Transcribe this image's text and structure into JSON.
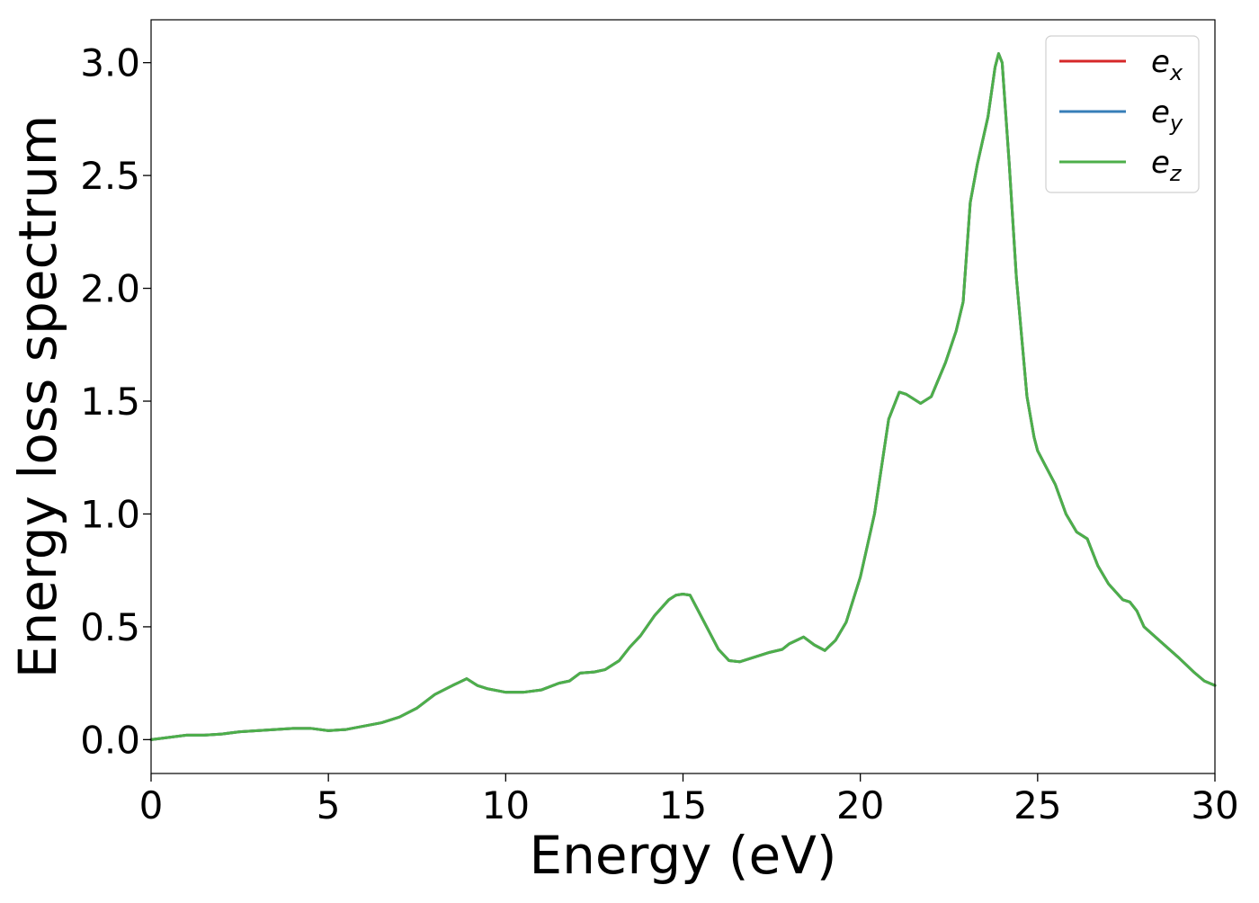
{
  "chart_data": {
    "type": "line",
    "title": "",
    "xlabel": "Energy (eV)",
    "ylabel": "Energy loss spectrum",
    "xlim": [
      0,
      30
    ],
    "ylim": [
      -0.15,
      3.19
    ],
    "xticks": [
      0,
      5,
      10,
      15,
      20,
      25,
      30
    ],
    "xtick_labels": [
      "0",
      "5",
      "10",
      "15",
      "20",
      "25",
      "30"
    ],
    "yticks": [
      0.0,
      0.5,
      1.0,
      1.5,
      2.0,
      2.5,
      3.0
    ],
    "ytick_labels": [
      "0.0",
      "0.5",
      "1.0",
      "1.5",
      "2.0",
      "2.5",
      "3.0"
    ],
    "grid": false,
    "legend_position": "top-right",
    "x": [
      0,
      0.5,
      1.0,
      1.5,
      2.0,
      2.5,
      3.0,
      3.5,
      4.0,
      4.5,
      5.0,
      5.5,
      6.0,
      6.5,
      7.0,
      7.5,
      8.0,
      8.5,
      8.9,
      9.2,
      9.5,
      10.0,
      10.5,
      11.0,
      11.5,
      11.8,
      12.1,
      12.5,
      12.8,
      13.2,
      13.5,
      13.8,
      14.2,
      14.6,
      14.8,
      15.0,
      15.2,
      15.5,
      16.0,
      16.3,
      16.6,
      17.0,
      17.4,
      17.8,
      18.0,
      18.4,
      18.7,
      19.0,
      19.3,
      19.6,
      20.0,
      20.4,
      20.8,
      21.1,
      21.3,
      21.7,
      22.0,
      22.4,
      22.7,
      22.9,
      23.1,
      23.3,
      23.6,
      23.8,
      23.9,
      24.0,
      24.2,
      24.4,
      24.7,
      24.9,
      25.0,
      25.2,
      25.5,
      25.8,
      26.1,
      26.4,
      26.7,
      27.0,
      27.4,
      27.6,
      27.8,
      28.0,
      28.5,
      29.0,
      29.4,
      29.7,
      30.0
    ],
    "series": [
      {
        "name": "e_x",
        "color": "#d62728",
        "y": [
          0.0,
          0.01,
          0.02,
          0.02,
          0.025,
          0.035,
          0.04,
          0.045,
          0.05,
          0.05,
          0.04,
          0.045,
          0.06,
          0.075,
          0.1,
          0.14,
          0.2,
          0.24,
          0.27,
          0.24,
          0.225,
          0.21,
          0.21,
          0.22,
          0.25,
          0.26,
          0.295,
          0.3,
          0.31,
          0.35,
          0.41,
          0.46,
          0.55,
          0.62,
          0.64,
          0.645,
          0.64,
          0.55,
          0.4,
          0.35,
          0.345,
          0.365,
          0.385,
          0.4,
          0.425,
          0.455,
          0.42,
          0.395,
          0.44,
          0.52,
          0.72,
          1.0,
          1.42,
          1.54,
          1.53,
          1.49,
          1.52,
          1.67,
          1.81,
          1.94,
          2.38,
          2.55,
          2.76,
          2.98,
          3.04,
          3.0,
          2.55,
          2.05,
          1.52,
          1.34,
          1.28,
          1.22,
          1.13,
          1.0,
          0.92,
          0.89,
          0.77,
          0.69,
          0.62,
          0.61,
          0.57,
          0.5,
          0.43,
          0.36,
          0.3,
          0.26,
          0.24
        ]
      },
      {
        "name": "e_y",
        "color": "#377eb8",
        "y": [
          0.0,
          0.01,
          0.02,
          0.02,
          0.025,
          0.035,
          0.04,
          0.045,
          0.05,
          0.05,
          0.04,
          0.045,
          0.06,
          0.075,
          0.1,
          0.14,
          0.2,
          0.24,
          0.27,
          0.24,
          0.225,
          0.21,
          0.21,
          0.22,
          0.25,
          0.26,
          0.295,
          0.3,
          0.31,
          0.35,
          0.41,
          0.46,
          0.55,
          0.62,
          0.64,
          0.645,
          0.64,
          0.55,
          0.4,
          0.35,
          0.345,
          0.365,
          0.385,
          0.4,
          0.425,
          0.455,
          0.42,
          0.395,
          0.44,
          0.52,
          0.72,
          1.0,
          1.42,
          1.54,
          1.53,
          1.49,
          1.52,
          1.67,
          1.81,
          1.94,
          2.38,
          2.55,
          2.76,
          2.98,
          3.04,
          3.0,
          2.55,
          2.05,
          1.52,
          1.34,
          1.28,
          1.22,
          1.13,
          1.0,
          0.92,
          0.89,
          0.77,
          0.69,
          0.62,
          0.61,
          0.57,
          0.5,
          0.43,
          0.36,
          0.3,
          0.26,
          0.24
        ]
      },
      {
        "name": "e_z",
        "color": "#4daf4a",
        "y": [
          0.0,
          0.01,
          0.02,
          0.02,
          0.025,
          0.035,
          0.04,
          0.045,
          0.05,
          0.05,
          0.04,
          0.045,
          0.06,
          0.075,
          0.1,
          0.14,
          0.2,
          0.24,
          0.27,
          0.24,
          0.225,
          0.21,
          0.21,
          0.22,
          0.25,
          0.26,
          0.295,
          0.3,
          0.31,
          0.35,
          0.41,
          0.46,
          0.55,
          0.62,
          0.64,
          0.645,
          0.64,
          0.55,
          0.4,
          0.35,
          0.345,
          0.365,
          0.385,
          0.4,
          0.425,
          0.455,
          0.42,
          0.395,
          0.44,
          0.52,
          0.72,
          1.0,
          1.42,
          1.54,
          1.53,
          1.49,
          1.52,
          1.67,
          1.81,
          1.94,
          2.38,
          2.55,
          2.76,
          2.98,
          3.04,
          3.0,
          2.55,
          2.05,
          1.52,
          1.34,
          1.28,
          1.22,
          1.13,
          1.0,
          0.92,
          0.89,
          0.77,
          0.69,
          0.62,
          0.61,
          0.57,
          0.5,
          0.43,
          0.36,
          0.3,
          0.26,
          0.24
        ]
      }
    ],
    "legend": [
      {
        "base": "e",
        "sub": "x"
      },
      {
        "base": "e",
        "sub": "y"
      },
      {
        "base": "e",
        "sub": "z"
      }
    ]
  }
}
